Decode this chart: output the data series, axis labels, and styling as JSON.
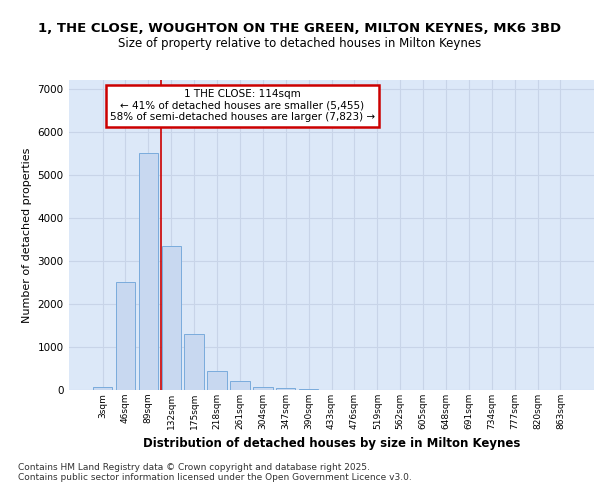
{
  "title_line1": "1, THE CLOSE, WOUGHTON ON THE GREEN, MILTON KEYNES, MK6 3BD",
  "title_line2": "Size of property relative to detached houses in Milton Keynes",
  "xlabel": "Distribution of detached houses by size in Milton Keynes",
  "ylabel": "Number of detached properties",
  "categories": [
    "3sqm",
    "46sqm",
    "89sqm",
    "132sqm",
    "175sqm",
    "218sqm",
    "261sqm",
    "304sqm",
    "347sqm",
    "390sqm",
    "433sqm",
    "476sqm",
    "519sqm",
    "562sqm",
    "605sqm",
    "648sqm",
    "691sqm",
    "734sqm",
    "777sqm",
    "820sqm",
    "863sqm"
  ],
  "values": [
    80,
    2500,
    5500,
    3350,
    1300,
    430,
    200,
    80,
    55,
    30,
    5,
    2,
    1,
    0,
    0,
    0,
    0,
    0,
    0,
    0,
    0
  ],
  "bar_color": "#c8d8f0",
  "bar_edge_color": "#7aabdc",
  "grid_color": "#c8d4e8",
  "plot_bg_color": "#dce8f8",
  "background_color": "#ffffff",
  "vline_color": "#cc0000",
  "annotation_text": "1 THE CLOSE: 114sqm\n← 41% of detached houses are smaller (5,455)\n58% of semi-detached houses are larger (7,823) →",
  "annotation_box_color": "#ffffff",
  "annotation_box_edge": "#cc0000",
  "ylim": [
    0,
    7200
  ],
  "yticks": [
    0,
    1000,
    2000,
    3000,
    4000,
    5000,
    6000,
    7000
  ],
  "footer_text": "Contains HM Land Registry data © Crown copyright and database right 2025.\nContains public sector information licensed under the Open Government Licence v3.0."
}
